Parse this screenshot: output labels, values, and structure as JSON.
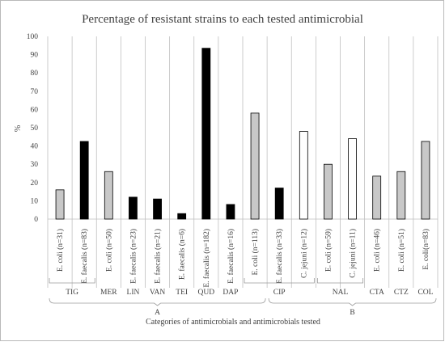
{
  "chart_data": {
    "type": "bar",
    "title": "Percentage of resistant strains to each tested antimicrobial",
    "ylabel": "%",
    "xlabel": "Categories of antimicrobials and antimicrobials tested",
    "ylim": [
      0,
      100
    ],
    "yticks": [
      0,
      10,
      20,
      30,
      40,
      50,
      60,
      70,
      80,
      90,
      100
    ],
    "grid": false,
    "legend": "none",
    "bar_styles": {
      "E. coli": "#c8c8c8",
      "E. faecalis": "#000000",
      "C. jejuni": "#ffffff"
    },
    "bars": [
      {
        "label": "E. coli (n=31)",
        "organism": "E. coli",
        "antimicrobial": "TIG",
        "value": 16
      },
      {
        "label": "E. faecalis (n=83)",
        "organism": "E. faecalis",
        "antimicrobial": "TIG",
        "value": 42.5
      },
      {
        "label": "E. coli (n=50)",
        "organism": "E. coli",
        "antimicrobial": "MER",
        "value": 26
      },
      {
        "label": "E. faecalis (n=23)",
        "organism": "E. faecalis",
        "antimicrobial": "LIN",
        "value": 12
      },
      {
        "label": "E. faecalis (n=21)",
        "organism": "E. faecalis",
        "antimicrobial": "VAN",
        "value": 11
      },
      {
        "label": "E. faecalis (n=6)",
        "organism": "E. faecalis",
        "antimicrobial": "TEI",
        "value": 3
      },
      {
        "label": "E. faecalis (n=182)",
        "organism": "E. faecalis",
        "antimicrobial": "QUD",
        "value": 93.5
      },
      {
        "label": "E. faecalis (n=16)",
        "organism": "E. faecalis",
        "antimicrobial": "DAP",
        "value": 8
      },
      {
        "label": "E. coli (n=113)",
        "organism": "E. coli",
        "antimicrobial": "CIP",
        "value": 58
      },
      {
        "label": "E. faecalis (n=33)",
        "organism": "E. faecalis",
        "antimicrobial": "CIP",
        "value": 17
      },
      {
        "label": "C. jejuni (n=12)",
        "organism": "C. jejuni",
        "antimicrobial": "CIP",
        "value": 48
      },
      {
        "label": "E. coli (n=59)",
        "organism": "E. coli",
        "antimicrobial": "NAL",
        "value": 30
      },
      {
        "label": "C. jejuni (n=11)",
        "organism": "C. jejuni",
        "antimicrobial": "NAL",
        "value": 44
      },
      {
        "label": "E. coli (n=46)",
        "organism": "E. coli",
        "antimicrobial": "CTA",
        "value": 23.5
      },
      {
        "label": "E. coli (n=51)",
        "organism": "E. coli",
        "antimicrobial": "CTZ",
        "value": 26
      },
      {
        "label": "E. coli(n=83)",
        "organism": "E. coli",
        "antimicrobial": "COL",
        "value": 42.5
      }
    ],
    "antimicrobial_groups": [
      {
        "label": "TIG",
        "bars": 2
      },
      {
        "label": "MER",
        "bars": 1
      },
      {
        "label": "LIN",
        "bars": 1
      },
      {
        "label": "VAN",
        "bars": 1
      },
      {
        "label": "TEI",
        "bars": 1
      },
      {
        "label": "QUD",
        "bars": 1
      },
      {
        "label": "DAP",
        "bars": 1
      },
      {
        "label": "CIP",
        "bars": 3
      },
      {
        "label": "NAL",
        "bars": 2
      },
      {
        "label": "CTA",
        "bars": 1
      },
      {
        "label": "CTZ",
        "bars": 1
      },
      {
        "label": "COL",
        "bars": 1
      }
    ],
    "categories": [
      {
        "label": "A",
        "bars": 9
      },
      {
        "label": "B",
        "bars": 7
      }
    ]
  }
}
